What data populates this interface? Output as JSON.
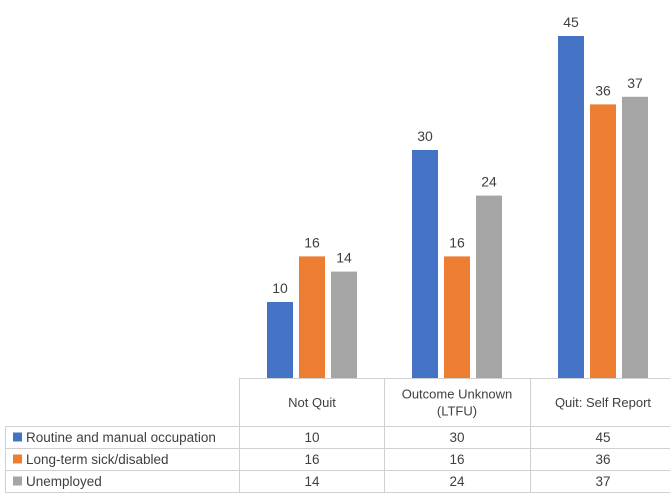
{
  "chart_data": {
    "type": "bar",
    "categories": [
      "Not Quit",
      "Outcome Unknown (LTFU)",
      "Quit: Self Report"
    ],
    "category_lines": [
      [
        "Not Quit"
      ],
      [
        "Outcome Unknown",
        "(LTFU)"
      ],
      [
        "Quit: Self Report"
      ]
    ],
    "series": [
      {
        "name": "Routine and manual occupation",
        "color": "#4472c4",
        "values": [
          10,
          30,
          45
        ]
      },
      {
        "name": "Long-term sick/disabled",
        "color": "#ed7d31",
        "values": [
          16,
          16,
          36
        ]
      },
      {
        "name": "Unemployed",
        "color": "#a5a5a5",
        "values": [
          14,
          24,
          37
        ]
      }
    ],
    "data_labels": true,
    "data_table": true,
    "legend": "left of data table",
    "grid": false,
    "ylim": [
      0,
      45
    ]
  }
}
